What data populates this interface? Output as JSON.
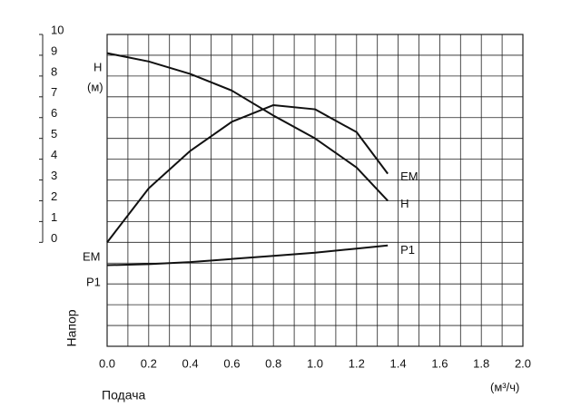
{
  "chart_data": {
    "type": "line",
    "y_label": "Напор",
    "y_unit_label": "H",
    "y_unit": "(м)",
    "x_label": "Подача",
    "x_unit": "(м³/ч)",
    "annotations": [
      "EM",
      "P1"
    ],
    "x": [
      0,
      0.2,
      0.4,
      0.6,
      0.8,
      1.0,
      1.2,
      1.35
    ],
    "series": [
      {
        "name": "EM",
        "color": "#111111",
        "values": [
          0,
          2.6,
          4.4,
          5.8,
          6.6,
          6.4,
          5.3,
          3.3
        ]
      },
      {
        "name": "H",
        "color": "#111111",
        "values": [
          9.1,
          8.7,
          8.1,
          7.3,
          6.1,
          5.0,
          3.6,
          2.0
        ]
      },
      {
        "name": "P1",
        "color": "#111111",
        "values": [
          -1.1,
          -1.05,
          -0.95,
          -0.8,
          -0.65,
          -0.5,
          -0.3,
          -0.15
        ]
      }
    ],
    "xlim": [
      0,
      2
    ],
    "xticks": [
      {
        "value": 0,
        "label": "0.0"
      },
      0.2,
      0.4,
      0.6,
      0.8,
      {
        "value": 1,
        "label": "1.0"
      },
      1.2,
      1.4,
      1.6,
      1.8,
      {
        "value": 2,
        "label": "2.0"
      }
    ],
    "ylim": [
      -5,
      10
    ],
    "yticks": [
      0,
      1,
      2,
      3,
      4,
      5,
      6,
      7,
      8,
      9,
      10
    ],
    "grid": true
  }
}
